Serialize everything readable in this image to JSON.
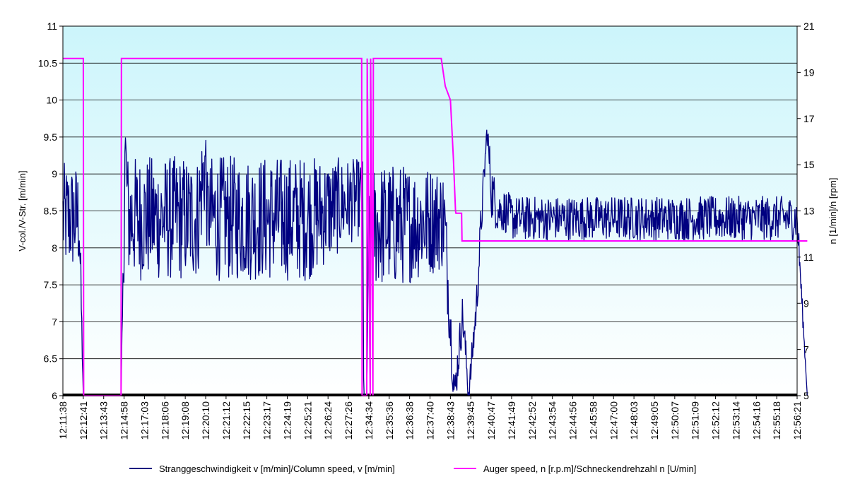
{
  "chart_data": {
    "type": "line",
    "title": "",
    "xlabel": "",
    "ylabel": "V-col./V-Str. [m/min]",
    "y2label": "n [1/min]/n [rpm]",
    "ylim": [
      6,
      11
    ],
    "y2lim": [
      5,
      21
    ],
    "yticks": [
      "6",
      "6.5",
      "7",
      "7.5",
      "8",
      "8.5",
      "9",
      "9.5",
      "10",
      "10.5",
      "11"
    ],
    "y2ticks": [
      "5",
      "7",
      "9",
      "11",
      "13",
      "15",
      "17",
      "19",
      "21"
    ],
    "categories": [
      "12:11:38",
      "12:12:41",
      "12:13:43",
      "12:14:58",
      "12:17:03",
      "12:18:06",
      "12:19:08",
      "12:20:10",
      "12:21:12",
      "12:22:15",
      "12:23:17",
      "12:24:19",
      "12:25:21",
      "12:26:24",
      "12:27:26",
      "12:34:34",
      "12:35:36",
      "12:36:38",
      "12:37:40",
      "12:38:43",
      "12:39:45",
      "12:40:47",
      "12:41:49",
      "12:42:52",
      "12:43:54",
      "12:44:56",
      "12:45:58",
      "12:47:00",
      "12:48:03",
      "12:49:05",
      "12:50:07",
      "12:51:09",
      "12:52:12",
      "12:53:14",
      "12:54:16",
      "12:55:18",
      "12:56:21"
    ],
    "grid": true,
    "legend_position": "bottom",
    "colors": {
      "column_speed": "#000080",
      "auger_speed": "#ff00ff",
      "plot_bg_top": "#ccf5fb",
      "plot_bg_bottom": "#ffffff"
    },
    "series": [
      {
        "name": "Stranggeschwindigkeit v [m/min]/Column speed, v [m/min]",
        "axis": "left",
        "x": [
          0,
          0.8,
          1.0,
          2.85,
          3.0,
          3.05,
          3.2,
          3.6,
          6.6,
          7.0,
          7.05,
          7.3,
          12.0,
          14.7,
          14.75,
          14.9,
          15.0,
          16.3,
          18.7,
          19.2,
          19.6,
          19.9,
          20.3,
          20.5,
          20.8,
          21.0,
          21.3,
          21.7,
          22.0,
          36.0,
          36.5
        ],
        "values": [
          8.4,
          8.4,
          6.0,
          6.0,
          8.2,
          9.5,
          8.4,
          8.4,
          8.4,
          9.2,
          8.5,
          8.4,
          8.4,
          8.7,
          6.0,
          6.0,
          8.3,
          8.3,
          8.4,
          6.0,
          7.1,
          6.0,
          7.3,
          8.3,
          9.6,
          8.8,
          8.5,
          8.5,
          8.4,
          8.4,
          6.0
        ],
        "noise_amplitude": [
          0.75,
          0.75,
          0.0,
          0.0,
          0.6,
          0.3,
          0.85,
          0.85,
          0.85,
          0.7,
          0.5,
          0.85,
          0.85,
          0.5,
          0.0,
          0.0,
          0.85,
          0.85,
          0.7,
          0.3,
          0.3,
          0.2,
          0.3,
          0.3,
          0.2,
          0.4,
          0.3,
          0.3,
          0.3,
          0.3,
          0.0
        ]
      },
      {
        "name": "Auger speed, n [r.p.m]/Schneckendrehzahl n [U/min]",
        "axis": "right",
        "x": [
          0,
          1.0,
          1.02,
          2.85,
          2.87,
          14.65,
          14.67,
          14.9,
          14.92,
          15.07,
          15.09,
          15.2,
          15.22,
          18.55,
          18.75,
          19.0,
          19.15,
          19.25,
          19.27,
          19.55,
          19.57,
          36.5
        ],
        "values": [
          19.6,
          19.6,
          5.0,
          5.0,
          19.6,
          19.6,
          5.0,
          5.0,
          19.6,
          5.0,
          19.6,
          5.0,
          19.6,
          19.6,
          18.4,
          17.8,
          15.2,
          13.0,
          12.9,
          12.9,
          11.7,
          11.7
        ]
      }
    ]
  }
}
